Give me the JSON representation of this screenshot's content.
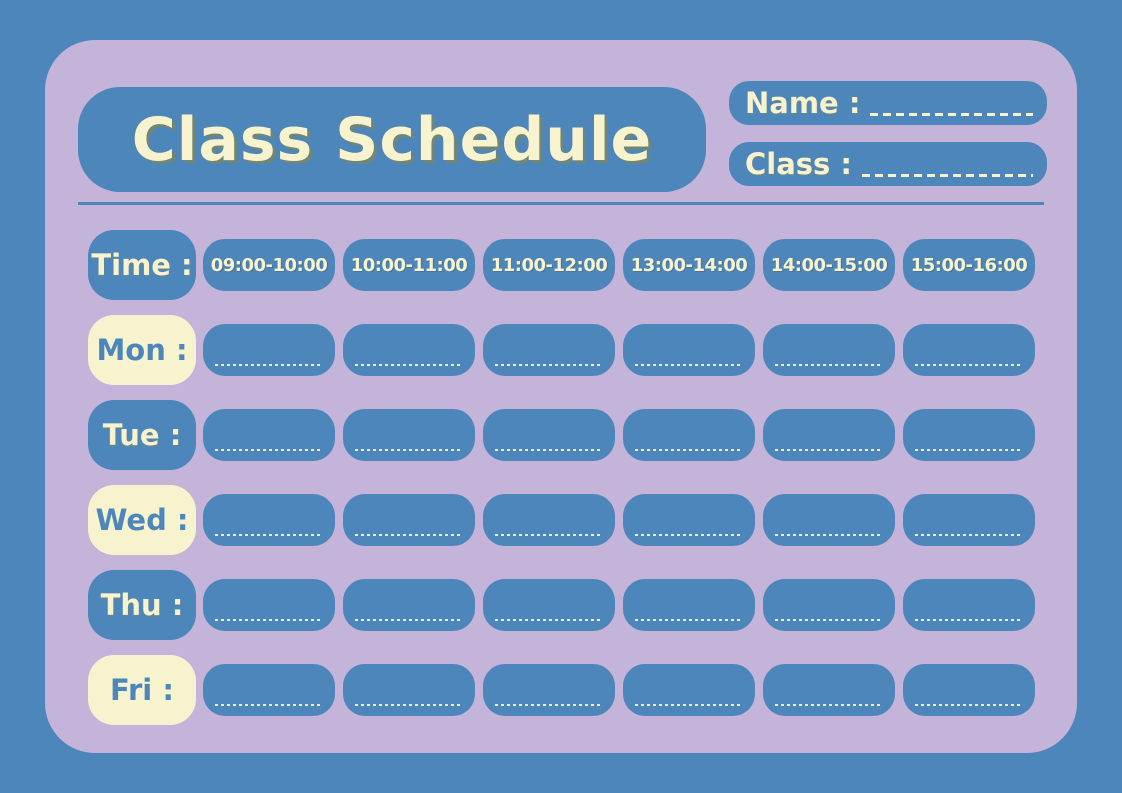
{
  "header": {
    "title": "Class Schedule",
    "name_label": "Name :",
    "class_label": "Class :"
  },
  "schedule": {
    "time_label": "Time :",
    "time_slots": [
      "09:00-10:00",
      "10:00-11:00",
      "11:00-12:00",
      "13:00-14:00",
      "14:00-15:00",
      "15:00-16:00"
    ],
    "days": [
      {
        "label": "Mon :",
        "variant": "cream"
      },
      {
        "label": "Tue :",
        "variant": "blue"
      },
      {
        "label": "Wed :",
        "variant": "cream"
      },
      {
        "label": "Thu :",
        "variant": "blue"
      },
      {
        "label": "Fri :",
        "variant": "cream"
      }
    ]
  },
  "colors": {
    "background_blue": "#4d86ba",
    "card_lavender": "#c4b4d9",
    "box_blue": "#4d86ba",
    "cream": "#f8f3cf",
    "title_shadow_olive": "#7e865e"
  }
}
